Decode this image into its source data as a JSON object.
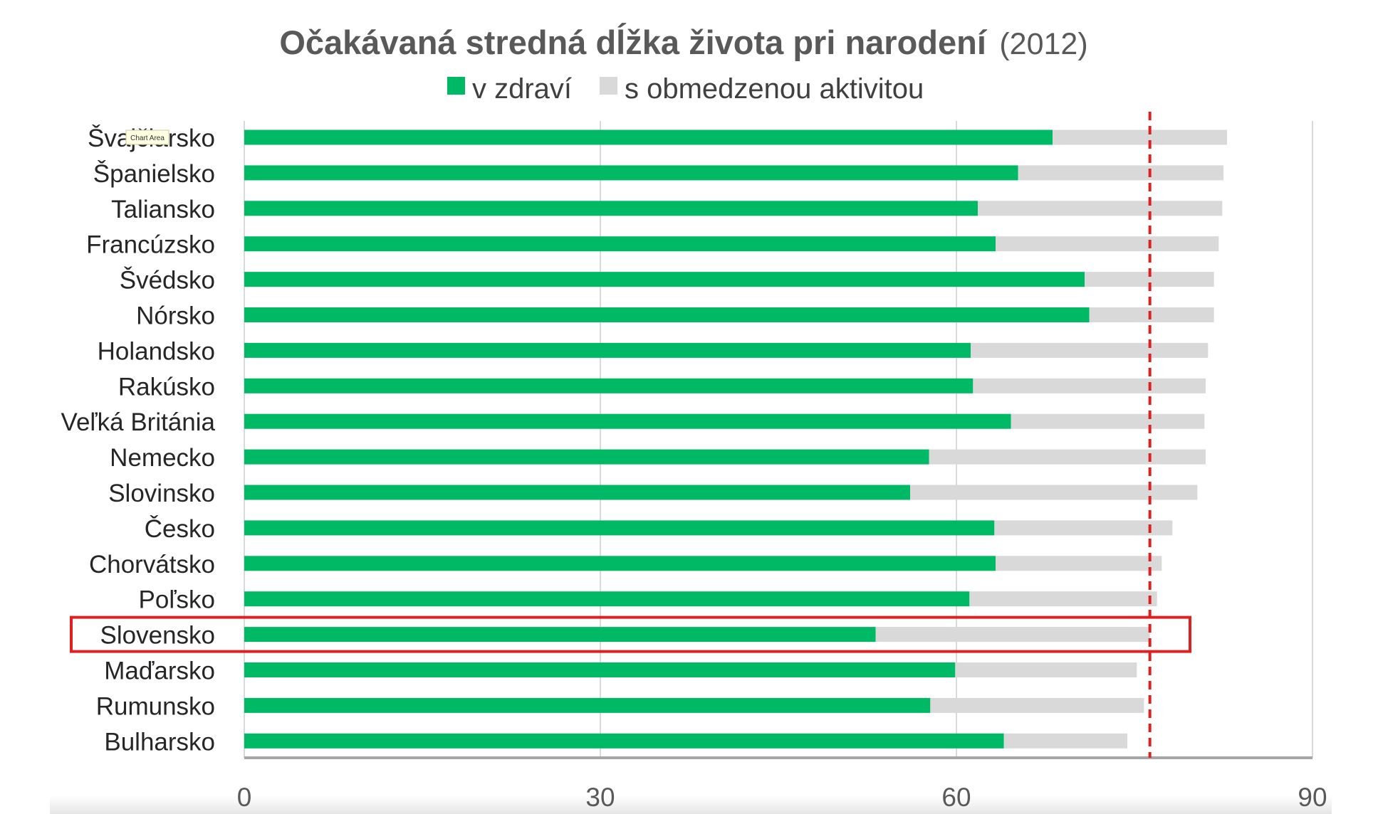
{
  "chart_data": {
    "type": "bar",
    "orientation": "horizontal",
    "stacked": true,
    "title": "Očakávaná stredná dĺžka života pri narodení",
    "subtitle": "(2012)",
    "legend_position": "top",
    "categories": [
      "Švajčiarsko",
      "Španielsko",
      "Taliansko",
      "Francúzsko",
      "Švédsko",
      "Nórsko",
      "Holandsko",
      "Rakúsko",
      "Veľká Británia",
      "Nemecko",
      "Slovinsko",
      "Česko",
      "Chorvátsko",
      "Poľsko",
      "Slovensko",
      "Maďarsko",
      "Rumunsko",
      "Bulharsko"
    ],
    "series": [
      {
        "name": "v zdraví",
        "color": "#00b965",
        "values": [
          68.1,
          65.2,
          61.8,
          63.3,
          70.8,
          71.2,
          61.2,
          61.4,
          64.6,
          57.7,
          56.1,
          63.2,
          63.3,
          61.1,
          53.2,
          59.9,
          57.8,
          64.0
        ]
      },
      {
        "name": "s obmedzenou aktivitou",
        "color": "#d9d9d9",
        "values": [
          14.7,
          17.3,
          20.6,
          18.8,
          10.9,
          10.5,
          20.0,
          19.6,
          16.3,
          23.3,
          24.2,
          15.0,
          14.0,
          15.8,
          23.1,
          15.3,
          18.0,
          10.4
        ]
      }
    ],
    "reference_line": {
      "value": 76.3,
      "color": "#e02020",
      "style": "dashed"
    },
    "highlight": {
      "category": "Slovensko",
      "color": "#e02020"
    },
    "xlim": [
      0,
      90
    ],
    "xticks": [
      "0",
      "30",
      "60",
      "90"
    ],
    "xlabel": "",
    "ylabel": "",
    "grid": true
  },
  "tooltip": {
    "text": "Chart Area"
  }
}
